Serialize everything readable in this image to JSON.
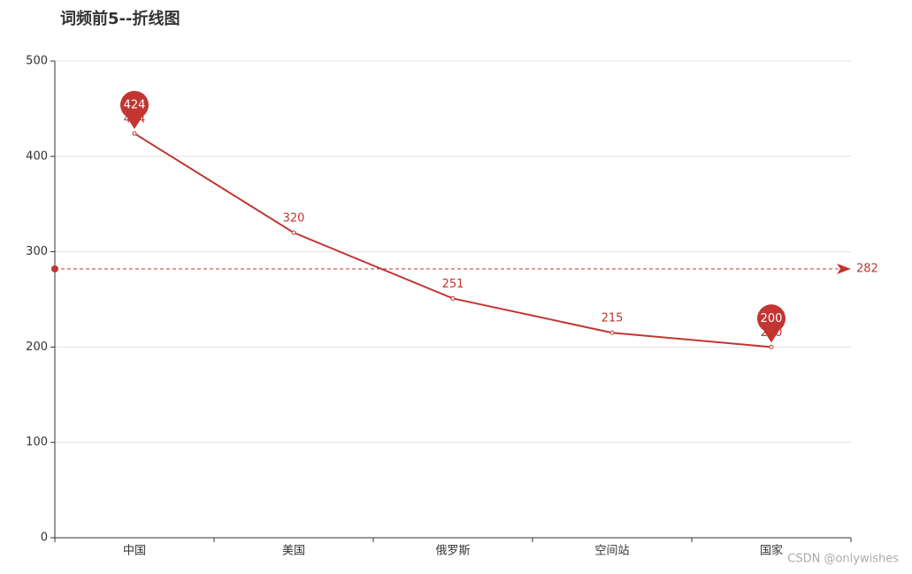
{
  "chart_data": {
    "type": "line",
    "title": "词频前5--折线图",
    "categories": [
      "中国",
      "美国",
      "俄罗斯",
      "空间站",
      "国家"
    ],
    "values": [
      424,
      320,
      251,
      215,
      200
    ],
    "color": "#c23531",
    "ylim": [
      0,
      500
    ],
    "yticks": [
      0,
      100,
      200,
      300,
      400,
      500
    ],
    "grid": true,
    "mark_points": [
      {
        "name": "最大值",
        "index": 0,
        "value": 424
      },
      {
        "name": "最小值",
        "index": 4,
        "value": 200
      }
    ],
    "mark_line": {
      "value": 282
    },
    "watermark": "CSDN @onlywishes"
  }
}
